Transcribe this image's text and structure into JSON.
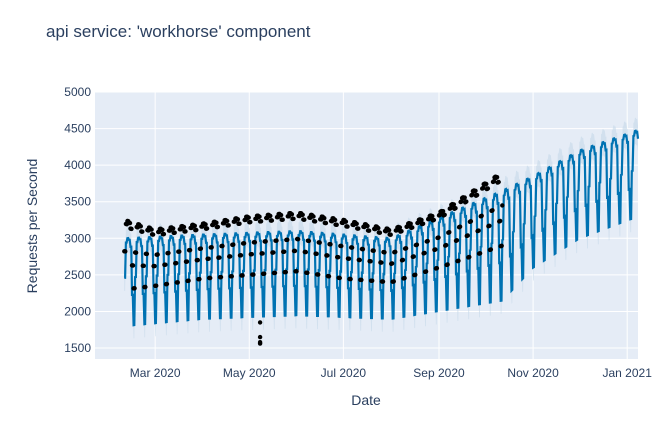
{
  "chart_data": {
    "type": "scatter",
    "title": "api service: 'workhorse' component",
    "xlabel": "Date",
    "ylabel": "Requests per Second",
    "x_range": [
      "2020-01-22",
      "2021-01-08"
    ],
    "y_range": [
      1350,
      5000
    ],
    "y_ticks": [
      1500,
      2000,
      2500,
      3000,
      3500,
      4000,
      4500,
      5000
    ],
    "x_ticks": [
      {
        "date": "2020-03-01",
        "label": "Mar 2020"
      },
      {
        "date": "2020-05-01",
        "label": "May 2020"
      },
      {
        "date": "2020-07-01",
        "label": "Jul 2020"
      },
      {
        "date": "2020-09-01",
        "label": "Sep 2020"
      },
      {
        "date": "2020-11-01",
        "label": "Nov 2020"
      },
      {
        "date": "2021-01-01",
        "label": "Jan 2021"
      }
    ],
    "grid": true,
    "series": [
      {
        "kind": "observed points",
        "color": "#000000",
        "start": "2020-02-10",
        "end": "2020-10-12",
        "weekly_envelope": [
          {
            "date": "2020-02-10",
            "low": 2300,
            "high": 3250
          },
          {
            "date": "2020-03-01",
            "low": 2350,
            "high": 3120
          },
          {
            "date": "2020-04-01",
            "low": 2450,
            "high": 3200
          },
          {
            "date": "2020-05-01",
            "low": 2500,
            "high": 3300
          },
          {
            "date": "2020-06-01",
            "low": 2550,
            "high": 3350
          },
          {
            "date": "2020-07-01",
            "low": 2450,
            "high": 3250
          },
          {
            "date": "2020-08-01",
            "low": 2400,
            "high": 3120
          },
          {
            "date": "2020-09-01",
            "low": 2600,
            "high": 3350
          },
          {
            "date": "2020-10-12",
            "low": 2900,
            "high": 3900
          }
        ],
        "outliers": [
          {
            "date": "2020-05-08",
            "value": 1850
          },
          {
            "date": "2020-05-08",
            "value": 1650
          },
          {
            "date": "2020-05-08",
            "value": 1580
          },
          {
            "date": "2020-05-08",
            "value": 1560
          }
        ]
      },
      {
        "kind": "forecast",
        "color": "#0072b2",
        "band_color": "#c5d8ea",
        "start": "2020-02-10",
        "end": "2021-01-08",
        "weekly_envelope": [
          {
            "date": "2020-02-10",
            "low": 1800,
            "high": 3000
          },
          {
            "date": "2020-04-01",
            "low": 1900,
            "high": 3050
          },
          {
            "date": "2020-06-01",
            "low": 1950,
            "high": 3100
          },
          {
            "date": "2020-08-01",
            "low": 1900,
            "high": 3000
          },
          {
            "date": "2020-10-12",
            "low": 2150,
            "high": 3650
          },
          {
            "date": "2020-11-01",
            "low": 2600,
            "high": 3850
          },
          {
            "date": "2020-12-01",
            "low": 3000,
            "high": 4200
          },
          {
            "date": "2021-01-08",
            "low": 3300,
            "high": 4480
          }
        ]
      }
    ]
  }
}
